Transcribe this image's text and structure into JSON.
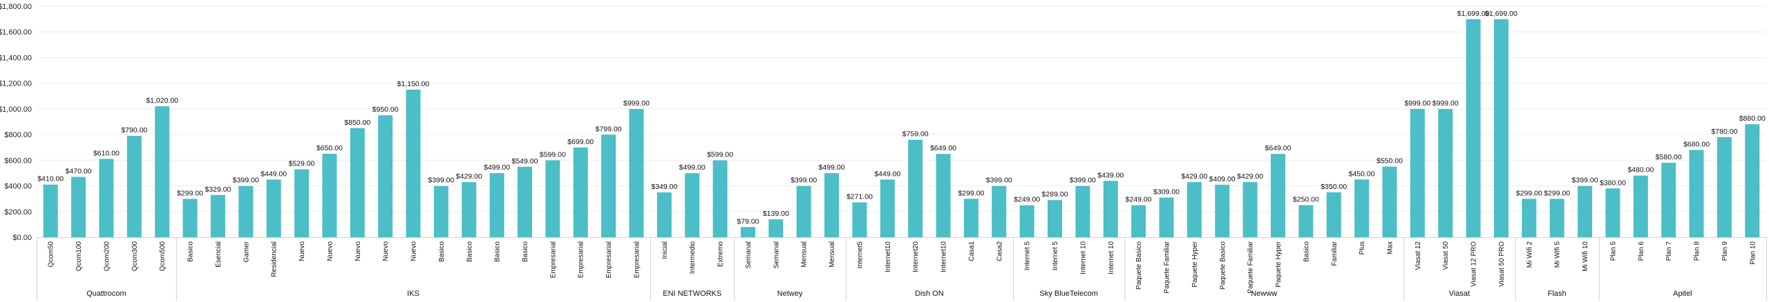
{
  "chart_data": {
    "type": "bar",
    "ylim": [
      0,
      1800
    ],
    "y_ticks": [
      "$0.00",
      "$200.00",
      "$400.00",
      "$600.00",
      "$800.00",
      "$1,000.00",
      "$1,200.00",
      "$1,400.00",
      "$1,600.00",
      "$1,800.00"
    ],
    "grid": true,
    "bar_color": "#4bbec7",
    "groups": [
      {
        "name": "Quattrocom",
        "bars": [
          {
            "category": "Qcom50",
            "value": 410,
            "label": "$410.00"
          },
          {
            "category": "Qcom100",
            "value": 470,
            "label": "$470.00"
          },
          {
            "category": "Qcom200",
            "value": 610,
            "label": "$610.00"
          },
          {
            "category": "Qcom300",
            "value": 790,
            "label": "$790.00"
          },
          {
            "category": "Qcom500",
            "value": 1020,
            "label": "$1,020.00"
          }
        ]
      },
      {
        "name": "IKS",
        "bars": [
          {
            "category": "Basico",
            "value": 299,
            "label": "$299.00"
          },
          {
            "category": "Esencial",
            "value": 329,
            "label": "$329.00"
          },
          {
            "category": "Gamer",
            "value": 399,
            "label": "$399.00"
          },
          {
            "category": "Residencial",
            "value": 449,
            "label": "$449.00"
          },
          {
            "category": "Nuevo",
            "value": 529,
            "label": "$529.00"
          },
          {
            "category": "Nuevo",
            "value": 650,
            "label": "$650.00"
          },
          {
            "category": "Nuevo",
            "value": 850,
            "label": "$850.00"
          },
          {
            "category": "Nuevo",
            "value": 950,
            "label": "$950.00"
          },
          {
            "category": "Nuevo",
            "value": 1150,
            "label": "$1,150.00"
          },
          {
            "category": "Basico",
            "value": 399,
            "label": "$399.00"
          },
          {
            "category": "Basico",
            "value": 429,
            "label": "$429.00"
          },
          {
            "category": "Basico",
            "value": 499,
            "label": "$499.00"
          },
          {
            "category": "Basico",
            "value": 549,
            "label": "$549.00"
          },
          {
            "category": "Empresarial",
            "value": 599,
            "label": "$599.00"
          },
          {
            "category": "Empresarial",
            "value": 699,
            "label": "$699.00"
          },
          {
            "category": "Empresarial",
            "value": 799,
            "label": "$799.00"
          },
          {
            "category": "Empresarial",
            "value": 999,
            "label": "$999.00"
          }
        ]
      },
      {
        "name": "ENI NETWORKS",
        "bars": [
          {
            "category": "Inicial",
            "value": 349,
            "label": "$349.00"
          },
          {
            "category": "Intermedio",
            "value": 499,
            "label": "$499.00"
          },
          {
            "category": "Extremo",
            "value": 599,
            "label": "$599.00"
          }
        ]
      },
      {
        "name": "Netwey",
        "bars": [
          {
            "category": "Semanal",
            "value": 79,
            "label": "$79.00"
          },
          {
            "category": "Semanal",
            "value": 139,
            "label": "$139.00"
          },
          {
            "category": "Mensual",
            "value": 399,
            "label": "$399.00"
          },
          {
            "category": "Mensual",
            "value": 499,
            "label": "$499.00"
          }
        ]
      },
      {
        "name": "Dish ON",
        "bars": [
          {
            "category": "Internet5",
            "value": 271,
            "label": "$271.00"
          },
          {
            "category": "Internet10",
            "value": 449,
            "label": "$449.00"
          },
          {
            "category": "Internet20",
            "value": 759,
            "label": "$759.00"
          },
          {
            "category": "Internet10",
            "value": 649,
            "label": "$649.00"
          },
          {
            "category": "Casa1",
            "value": 299,
            "label": "$299.00"
          },
          {
            "category": "Casa2",
            "value": 399,
            "label": "$399.00"
          }
        ]
      },
      {
        "name": "Sky BlueTelecom",
        "bars": [
          {
            "category": "Internet 5",
            "value": 249,
            "label": "$249.00"
          },
          {
            "category": "Internet 5",
            "value": 289,
            "label": "$289.00"
          },
          {
            "category": "Internet 10",
            "value": 399,
            "label": "$399.00"
          },
          {
            "category": "Internet 10",
            "value": 439,
            "label": "$439.00"
          }
        ]
      },
      {
        "name": "Newww",
        "bars": [
          {
            "category": "Paquete Basico",
            "value": 249,
            "label": "$249.00"
          },
          {
            "category": "Paquete Familiar",
            "value": 309,
            "label": "$309.00"
          },
          {
            "category": "Paquete Hyper",
            "value": 429,
            "label": "$429.00"
          },
          {
            "category": "Paquete Basico",
            "value": 409,
            "label": "$409.00"
          },
          {
            "category": "Paquete Familiar",
            "value": 429,
            "label": "$429.00"
          },
          {
            "category": "Paquete Hyper",
            "value": 649,
            "label": "$649.00"
          },
          {
            "category": "Basico",
            "value": 250,
            "label": "$250.00"
          },
          {
            "category": "Familiar",
            "value": 350,
            "label": "$350.00"
          },
          {
            "category": "Plus",
            "value": 450,
            "label": "$450.00"
          },
          {
            "category": "Max",
            "value": 550,
            "label": "$550.00"
          }
        ]
      },
      {
        "name": "Viasat",
        "bars": [
          {
            "category": "Viasat 12",
            "value": 999,
            "label": "$999.00"
          },
          {
            "category": "Viasat 50",
            "value": 999,
            "label": "$999.00"
          },
          {
            "category": "Viasat 12 PRO",
            "value": 1699,
            "label": "$1,699.00"
          },
          {
            "category": "Viasat 50 PRO",
            "value": 1699,
            "label": "$1,699.00"
          }
        ]
      },
      {
        "name": "Flash",
        "bars": [
          {
            "category": "Mi Wifi 2",
            "value": 299,
            "label": "$299.00"
          },
          {
            "category": "Mi Wifi 5",
            "value": 299,
            "label": "$299.00"
          },
          {
            "category": "Mi Wifi 10",
            "value": 399,
            "label": "$399.00"
          }
        ]
      },
      {
        "name": "Apitel",
        "bars": [
          {
            "category": "Plan 5",
            "value": 380,
            "label": "$380.00"
          },
          {
            "category": "Plan 6",
            "value": 480,
            "label": "$480.00"
          },
          {
            "category": "Plan 7",
            "value": 580,
            "label": "$580.00"
          },
          {
            "category": "Plan 8",
            "value": 680,
            "label": "$680.00"
          },
          {
            "category": "Plan 9",
            "value": 780,
            "label": "$780.00"
          },
          {
            "category": "Plan 10",
            "value": 880,
            "label": "$880.00"
          }
        ]
      }
    ]
  }
}
